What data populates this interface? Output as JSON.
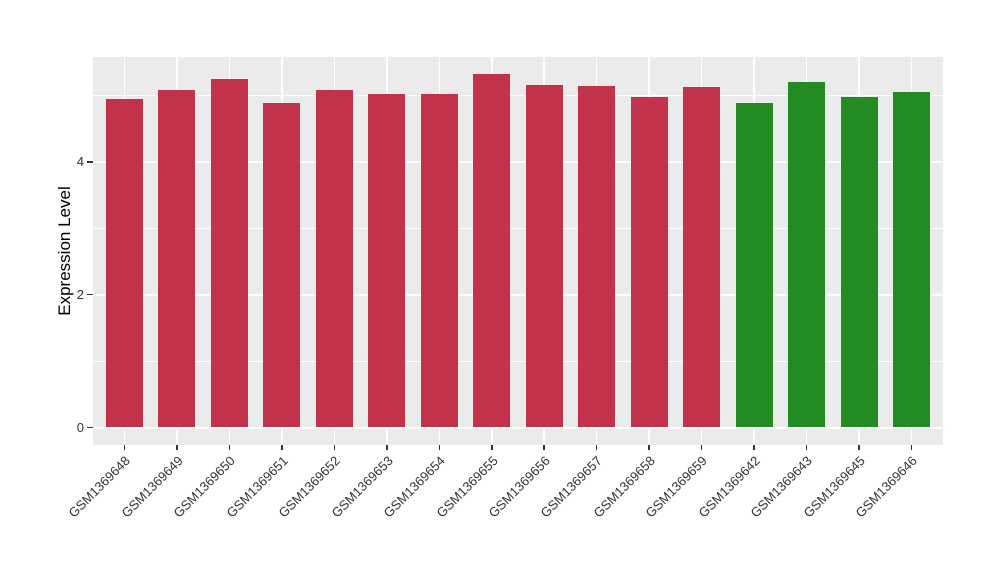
{
  "chart_data": {
    "type": "bar",
    "title": "",
    "xlabel": "",
    "ylabel": "Expression Level",
    "categories": [
      "GSM1369648",
      "GSM1369649",
      "GSM1369650",
      "GSM1369651",
      "GSM1369652",
      "GSM1369653",
      "GSM1369654",
      "GSM1369655",
      "GSM1369656",
      "GSM1369657",
      "GSM1369658",
      "GSM1369659",
      "GSM1369642",
      "GSM1369643",
      "GSM1369645",
      "GSM1369646"
    ],
    "values": [
      4.94,
      5.09,
      5.25,
      4.88,
      5.08,
      5.02,
      5.03,
      5.32,
      5.16,
      5.14,
      4.98,
      5.13,
      4.88,
      5.2,
      4.98,
      5.05
    ],
    "groups": [
      "group1",
      "group1",
      "group1",
      "group1",
      "group1",
      "group1",
      "group1",
      "group1",
      "group1",
      "group1",
      "group1",
      "group1",
      "group2",
      "group2",
      "group2",
      "group2"
    ],
    "group_colors": {
      "group1": "#C2324B",
      "group2": "#228B22"
    },
    "yticks": [
      0,
      2,
      4
    ],
    "ytick_labels": [
      "0",
      "2",
      "4"
    ],
    "minor_gridlines": [
      1,
      3,
      5
    ],
    "ylim": [
      -0.27,
      5.6
    ],
    "x_tick_angle_deg": 45,
    "legend_position": "none",
    "grid": "on",
    "panel_bg": "#EBEBEB",
    "grid_color": "#FFFFFF",
    "axis_text_color": "#333333",
    "tick_mark_color": "#333333"
  }
}
